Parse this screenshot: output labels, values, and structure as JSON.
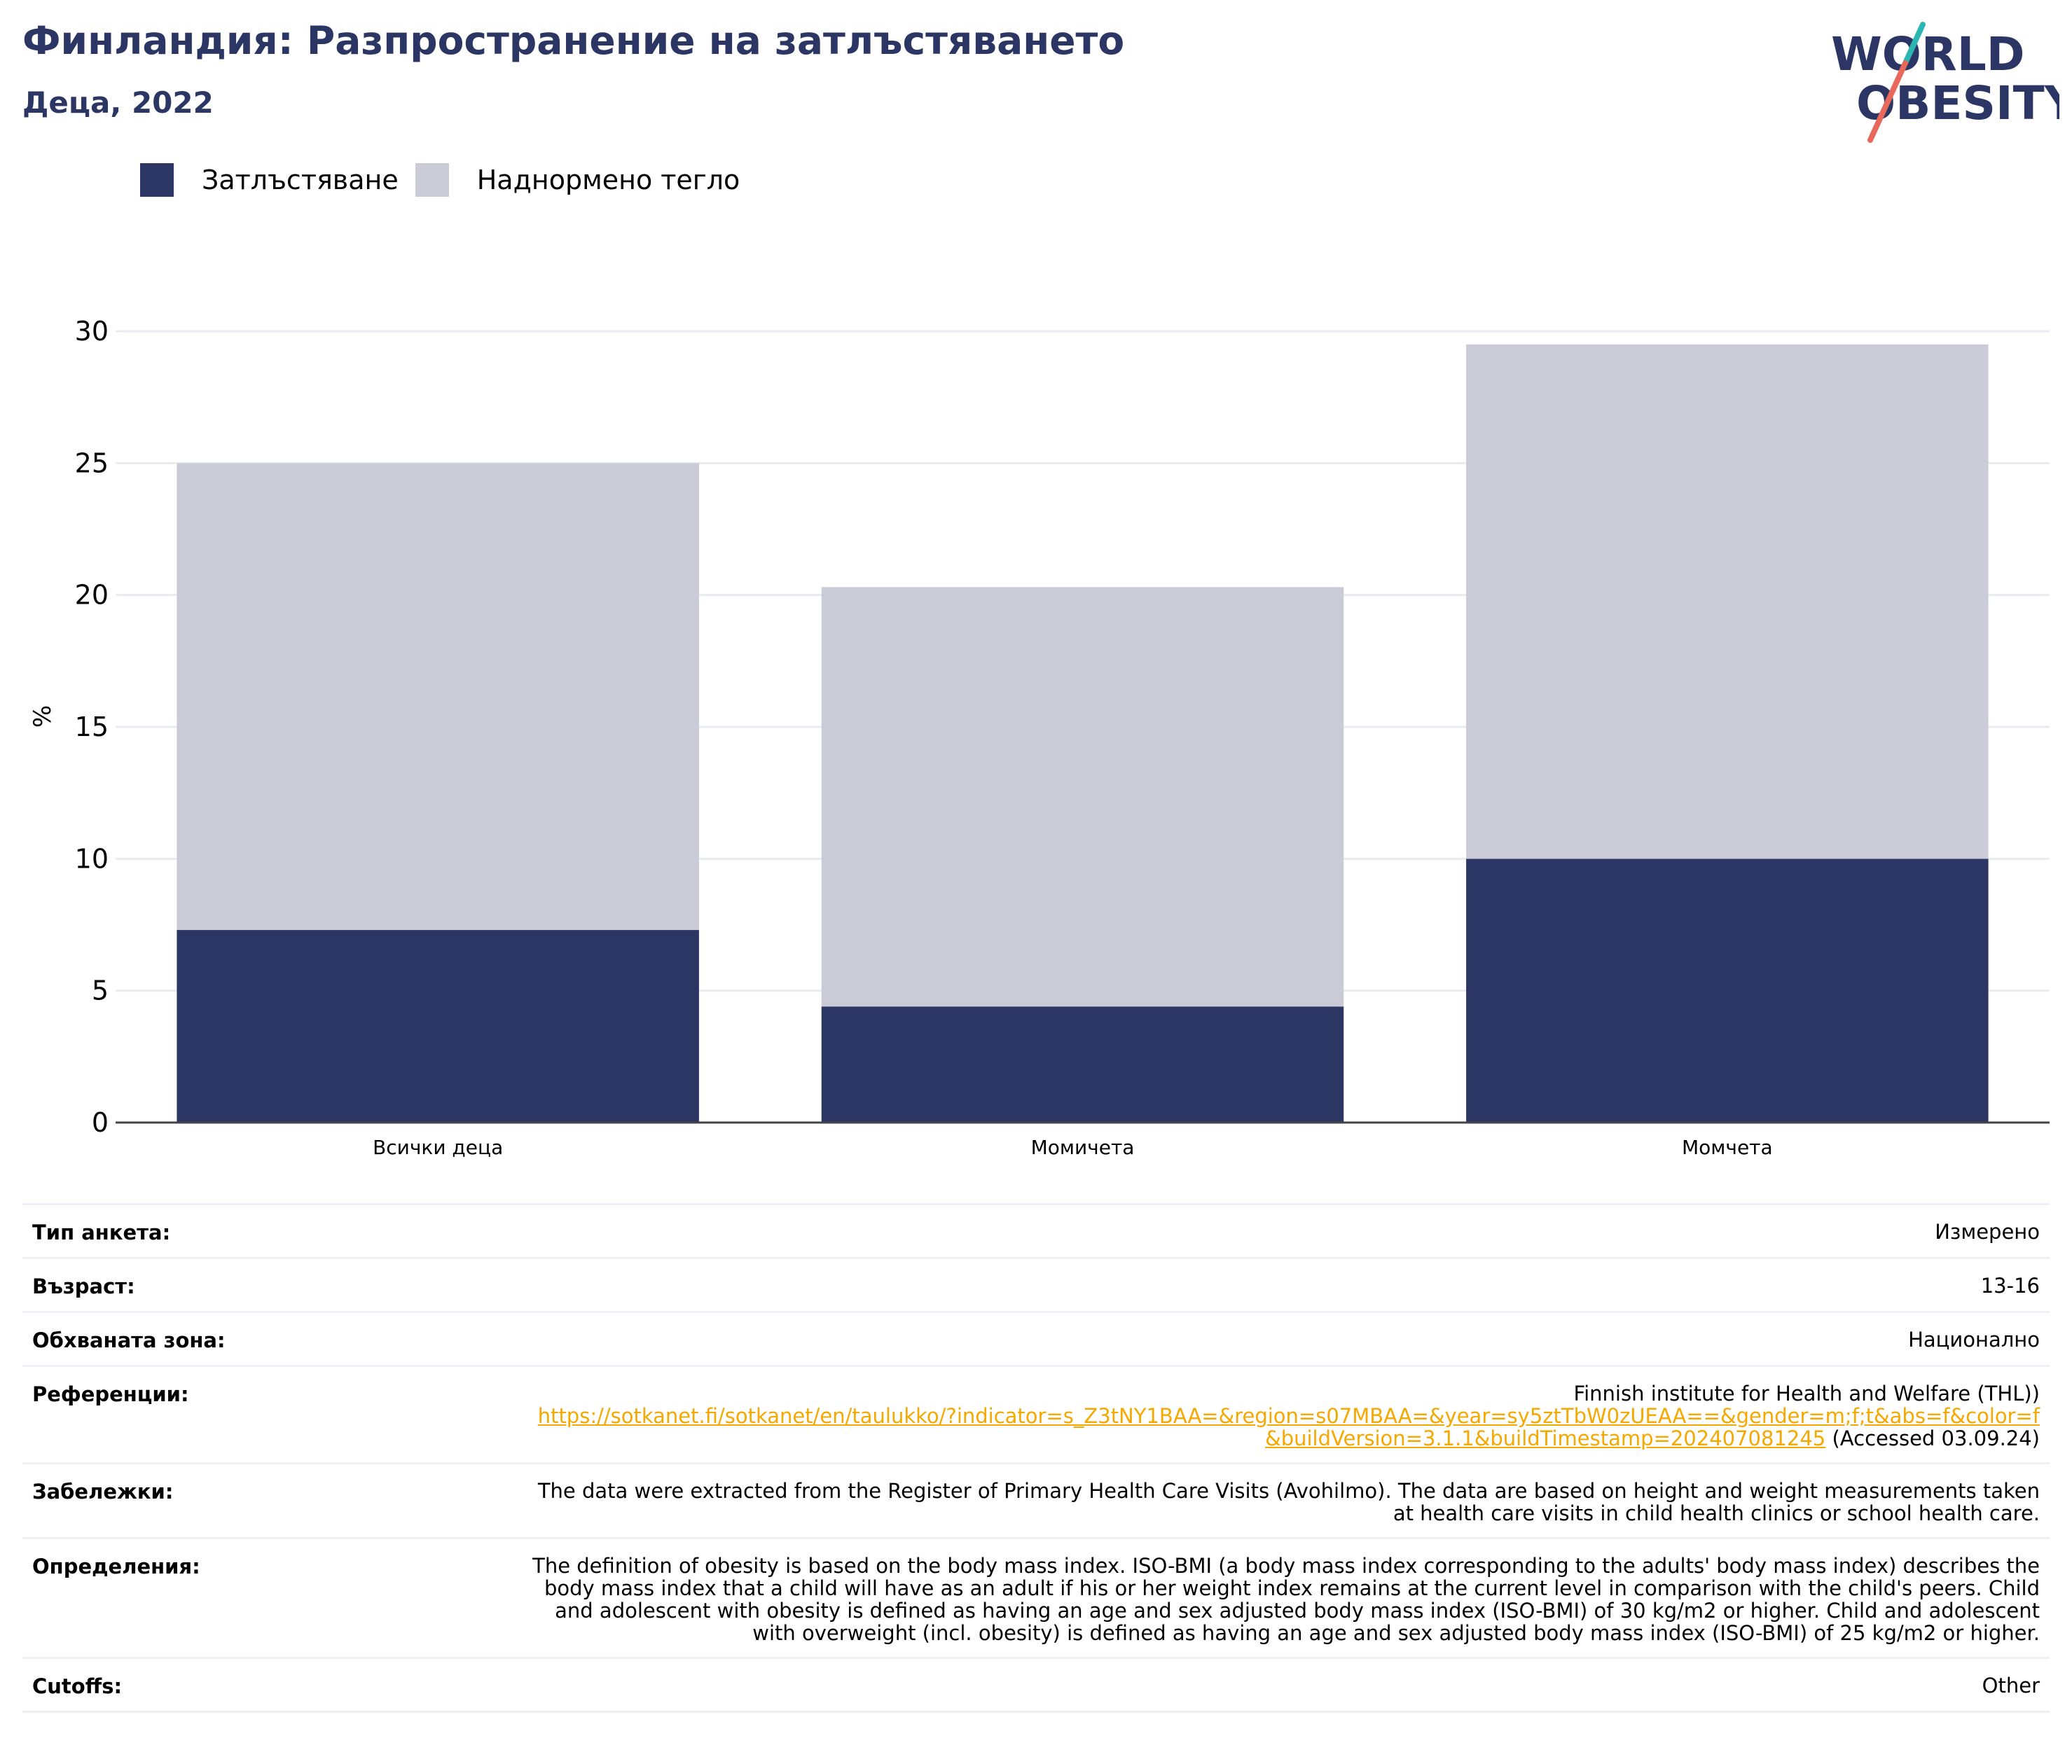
{
  "header": {
    "title": "Финландия: Разпространение на затлъстяването",
    "subtitle": "Деца, 2022"
  },
  "logo": {
    "line1": "WORLD",
    "line2": "OBESITY",
    "text_color": "#2b3664",
    "slash_top_color": "#2bb6b2",
    "slash_bottom_color": "#e8685b"
  },
  "legend": [
    {
      "label": "Затлъстяване",
      "color": "#2b3664"
    },
    {
      "label": "Наднормено тегло",
      "color": "#cacbd7"
    }
  ],
  "chart_data": {
    "type": "bar",
    "stacked": true,
    "categories": [
      "Всички деца",
      "Момичета",
      "Момчета"
    ],
    "series": [
      {
        "name": "Затлъстяване",
        "values": [
          7.3,
          4.4,
          10.0
        ],
        "color": "#2b3664"
      },
      {
        "name": "Наднормено тегло",
        "values": [
          17.7,
          15.9,
          19.5
        ],
        "color": "#cacbd7"
      }
    ],
    "ylabel": "%",
    "ylim": [
      0,
      30
    ],
    "yticks": [
      "0",
      "5",
      "10",
      "15",
      "20",
      "25",
      "30"
    ],
    "grid": true,
    "legend_position": "top-left"
  },
  "info": [
    {
      "key": "Тип анкета:",
      "value": "Измерено"
    },
    {
      "key": "Възраст:",
      "value": "13-16"
    },
    {
      "key": "Обхваната зона:",
      "value": "Национално"
    },
    {
      "key": "Референции:",
      "value": "Finnish institute for Health and Welfare (THL))",
      "link": "https://sotkanet.fi/sotkanet/en/taulukko/?indicator=s_Z3tNY1BAA=&region=s07MBAA=&year=sy5ztTbW0zUEAA==&gender=m;f;t&abs=f&color=f&buildVersion=3.1.1&buildTimestamp=202407081245",
      "suffix": " (Accessed 03.09.24)"
    },
    {
      "key": "Забележки:",
      "value": "The data were extracted from the Register of Primary Health Care Visits (Avohilmo). The data are based on height and weight measurements taken at health care visits in child health clinics or school health care."
    },
    {
      "key": "Определения:",
      "value": "The definition of obesity is based on the body mass index. ISO-BMI (a body mass index corresponding to the adults' body mass index) describes the body mass index that a child will have as an adult if his or her weight index remains at the current level in comparison with the child's peers. Child and adolescent with obesity is defined as having an age and sex adjusted body mass index (ISO-BMI) of 30 kg/m2 or higher. Child and adolescent with overweight (incl. obesity) is defined as having an age and sex adjusted body mass index (ISO-BMI) of 25 kg/m2 or higher."
    },
    {
      "key": "Cutoffs:",
      "value": "Other"
    }
  ]
}
